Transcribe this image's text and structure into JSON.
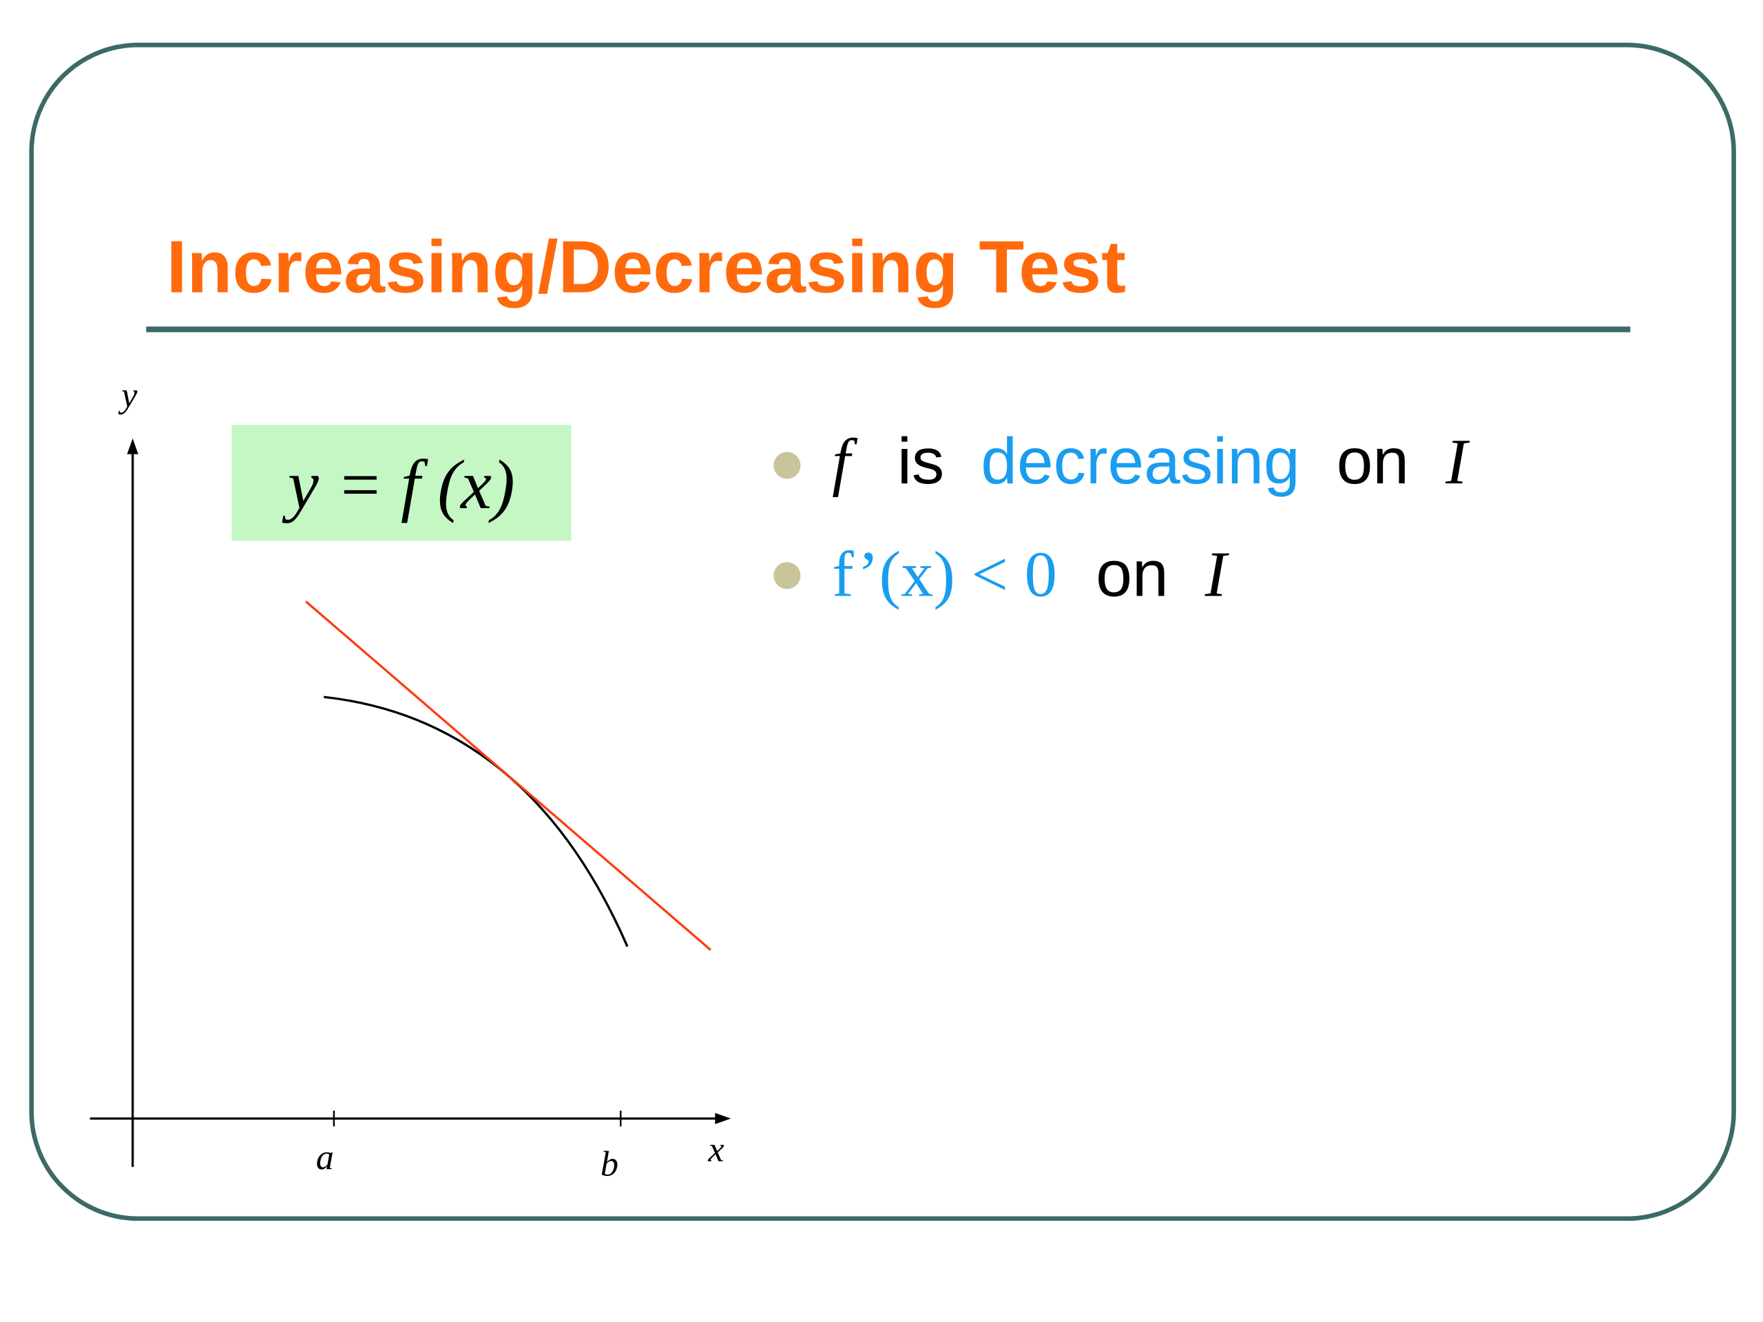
{
  "slide": {
    "title": "Increasing/Decreasing Test",
    "graph": {
      "formula": "y = f (x)",
      "y_label": "y",
      "x_label": "x",
      "tick_a": "a",
      "tick_b": "b"
    },
    "bullets": [
      [
        "f",
        "is",
        "decreasing",
        "on",
        "I"
      ],
      [
        "f’(x) < 0",
        "on",
        "I"
      ]
    ]
  }
}
